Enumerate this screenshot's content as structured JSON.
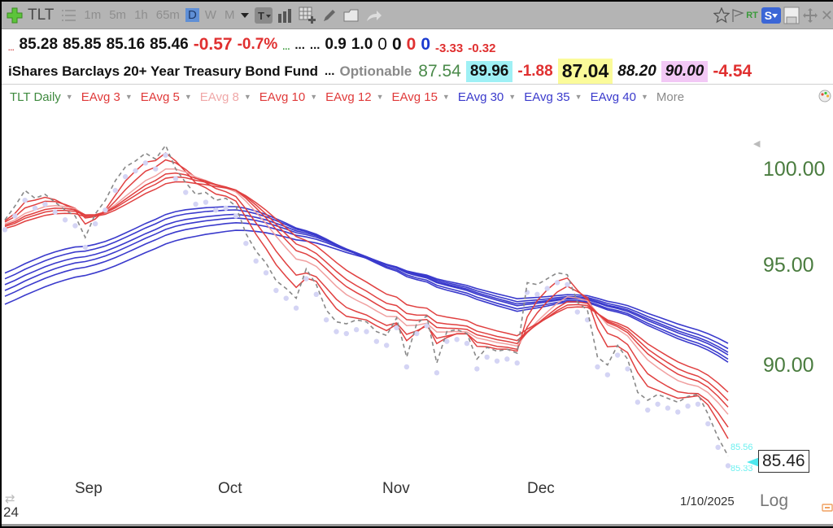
{
  "toolbar": {
    "symbol": "TLT",
    "timeframes": [
      {
        "label": "1m",
        "active": false
      },
      {
        "label": "5m",
        "active": false
      },
      {
        "label": "1h",
        "active": false
      },
      {
        "label": "65m",
        "active": false
      },
      {
        "label": "D",
        "active": true
      },
      {
        "label": "W",
        "active": false
      },
      {
        "label": "M",
        "active": false
      }
    ],
    "icons": [
      "add-symbol-icon",
      "list-icon",
      "timeframe-dropdown-icon",
      "text-tool-icon",
      "bar-chart-icon",
      "table-add-icon",
      "pencil-icon",
      "folder-icon",
      "share-icon",
      "star-icon",
      "flag-icon",
      "realtime-icon",
      "s-menu-icon",
      "save-icon",
      "move-icon",
      "close-icon"
    ],
    "rt_label": "RT",
    "s_label": "S"
  },
  "quote": {
    "prefix": "...",
    "open": "85.28",
    "high": "85.85",
    "low": "85.16",
    "close": "85.46",
    "change": "-0.57",
    "change_pct": "-0.7%",
    "dots_green": "...",
    "dots_1": "...",
    "dots_2": "...",
    "v1": "0.9",
    "v2": "1.0",
    "z1": "0",
    "z2": "0",
    "z3": "0",
    "z4": "0",
    "n1": "-3.33",
    "n2": "-0.32"
  },
  "info": {
    "name": "iShares Barclays 20+ Year Treasury Bond Fund",
    "dots": "...",
    "optionable": "Optionable",
    "p1": "87.54",
    "p2": "89.96",
    "p3": "-1.88",
    "p4": "87.04",
    "p5": "88.20",
    "p6": "90.00",
    "p7": "-4.54"
  },
  "legend": {
    "items": [
      {
        "label": "TLT Daily",
        "color": "#3f8a3f"
      },
      {
        "label": "EAvg 3",
        "color": "#e03a3a"
      },
      {
        "label": "EAvg 5",
        "color": "#e03a3a"
      },
      {
        "label": "EAvg 8",
        "color": "#f0a8a8"
      },
      {
        "label": "EAvg 10",
        "color": "#e03a3a"
      },
      {
        "label": "EAvg 12",
        "color": "#e03a3a"
      },
      {
        "label": "EAvg 15",
        "color": "#e03a3a"
      },
      {
        "label": "EAvg 30",
        "color": "#3a3acc"
      },
      {
        "label": "EAvg 35",
        "color": "#3a3acc"
      },
      {
        "label": "EAvg 40",
        "color": "#3a3acc"
      }
    ],
    "more": "More"
  },
  "chart_data": {
    "type": "line",
    "title": "TLT Daily",
    "y_ticks": [
      "100.00",
      "95.00",
      "90.00"
    ],
    "x_ticks": [
      "Sep",
      "Oct",
      "Nov",
      "Dec"
    ],
    "year_label": "24",
    "date_label": "1/10/2025",
    "scale_label": "Log",
    "last_price": "85.46",
    "marker_upper": "85.56",
    "marker_lower": "85.33",
    "ylim": [
      84.5,
      102
    ],
    "series": [
      {
        "name": "TLT Close",
        "style": "dashed-gray",
        "values": [
          97.5,
          98.2,
          99.0,
          98.6,
          98.8,
          98.4,
          98.0,
          97.7,
          96.6,
          97.8,
          98.5,
          99.5,
          100.2,
          100.5,
          100.9,
          100.6,
          101.3,
          100.1,
          99.4,
          98.8,
          98.9,
          98.5,
          98.6,
          98.2,
          96.8,
          95.9,
          95.3,
          94.4,
          94.0,
          93.5,
          95.0,
          94.2,
          92.9,
          92.3,
          92.2,
          92.4,
          92.3,
          91.8,
          91.6,
          92.5,
          90.5,
          92.2,
          92.6,
          90.2,
          91.8,
          91.9,
          91.7,
          90.4,
          91.0,
          90.8,
          90.9,
          90.7,
          94.3,
          94.2,
          94.5,
          94.8,
          94.7,
          93.3,
          92.9,
          90.5,
          90.1,
          91.1,
          90.4,
          88.7,
          88.3,
          88.6,
          88.4,
          88.2,
          88.5,
          88.6,
          87.6,
          86.4,
          85.46
        ]
      },
      {
        "name": "EAvg 3",
        "color": "#e03a3a"
      },
      {
        "name": "EAvg 5",
        "color": "#e03a3a"
      },
      {
        "name": "EAvg 8",
        "color": "#f0a8a8"
      },
      {
        "name": "EAvg 10",
        "color": "#e03a3a"
      },
      {
        "name": "EAvg 12",
        "color": "#e03a3a"
      },
      {
        "name": "EAvg 15",
        "color": "#e03a3a"
      },
      {
        "name": "EAvg 30",
        "color": "#3a3acc"
      },
      {
        "name": "EAvg 35",
        "color": "#3a3acc"
      },
      {
        "name": "EAvg 40",
        "color": "#3a3acc"
      }
    ]
  }
}
